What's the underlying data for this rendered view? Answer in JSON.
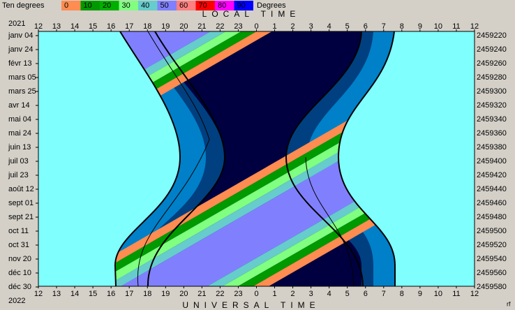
{
  "legend": {
    "title": "Ten degrees",
    "labels": [
      "0",
      "10",
      "20",
      "30",
      "40",
      "50",
      "60",
      "70",
      "80",
      "90"
    ],
    "colors": [
      "#ff8c50",
      "#009900",
      "#00b000",
      "#80ff80",
      "#66cccc",
      "#8080ff",
      "#ff8080",
      "#ff0000",
      "#ff00ff",
      "#0000ff"
    ],
    "unit": "Degrees"
  },
  "header": {
    "title": "LOCAL TIME",
    "year": "2021"
  },
  "footer": {
    "title": "UNIVERSAL TIME",
    "year": "2022",
    "corner": "rf"
  },
  "top_hours": [
    "12",
    "13",
    "14",
    "15",
    "16",
    "17",
    "18",
    "19",
    "20",
    "21",
    "22",
    "23",
    "0",
    "1",
    "2",
    "3",
    "4",
    "5",
    "6",
    "7",
    "8",
    "9",
    "10",
    "11",
    "12"
  ],
  "bottom_hours": [
    "12",
    "13",
    "14",
    "15",
    "16",
    "17",
    "18",
    "19",
    "20",
    "21",
    "22",
    "23",
    "0",
    "1",
    "2",
    "3",
    "4",
    "5",
    "6",
    "7",
    "8",
    "9",
    "10",
    "11",
    "12"
  ],
  "dates": [
    "janv 04",
    "janv 24",
    "févr 13",
    "mars 05",
    "mars 25",
    "avr 14",
    "mai 04",
    "mai 24",
    "juin 13",
    "juil 03",
    "juil 23",
    "août 12",
    "sept 01",
    "sept 21",
    "oct 11",
    "oct 31",
    "nov 20",
    "déc 10",
    "déc 30"
  ],
  "julian_days": [
    "2459220",
    "2459240",
    "2459260",
    "2459280",
    "2459300",
    "2459320",
    "2459340",
    "2459360",
    "2459380",
    "2459400",
    "2459420",
    "2459440",
    "2459460",
    "2459480",
    "2459500",
    "2459520",
    "2459540",
    "2459560",
    "2459580"
  ]
}
